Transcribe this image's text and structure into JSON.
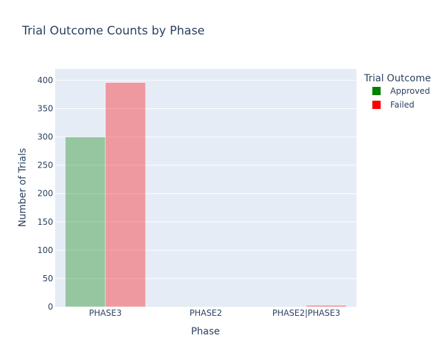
{
  "chart_data": {
    "type": "bar",
    "title": "Trial Outcome Counts by Phase",
    "xlabel": "Phase",
    "ylabel": "Number of Trials",
    "categories": [
      "PHASE3",
      "PHASE2",
      "PHASE2|PHASE3"
    ],
    "series": [
      {
        "name": "Approved",
        "values": [
          300,
          1,
          0
        ],
        "color": "#008000"
      },
      {
        "name": "Failed",
        "values": [
          396,
          0,
          3
        ],
        "color": "#ff0000"
      }
    ],
    "ylim": [
      0,
      420
    ],
    "yticks": [
      0,
      50,
      100,
      150,
      200,
      250,
      300,
      350,
      400
    ],
    "grid": true,
    "legend": {
      "title": "Trial Outcome",
      "placement": "top-right"
    },
    "plot_background": "#e5ecf6",
    "bar_opacity": 0.35
  }
}
